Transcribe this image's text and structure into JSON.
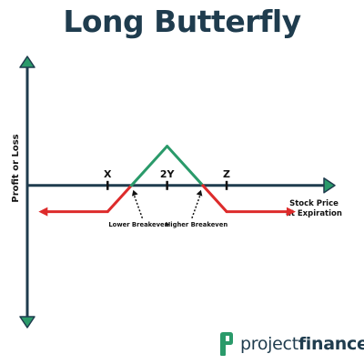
{
  "title": "Long Butterfly",
  "brand": {
    "light": "project",
    "bold": "finance",
    "logo_icon": "projectfinance-logo-icon",
    "logo_color": "#2a9a6a"
  },
  "colors": {
    "axis": "#1f3c4e",
    "arrow_head": "#2a9a6a",
    "profit": "#2a9a6a",
    "loss": "#dd2b2b",
    "text": "#111111"
  },
  "chart_data": {
    "type": "line",
    "xlabel": "Stock Price at Expiration",
    "xlabel_lines": [
      "Stock Price",
      "at Expiration"
    ],
    "ylabel": "Profit or Loss",
    "strikes": [
      {
        "label": "X",
        "x": 0
      },
      {
        "label": "2Y",
        "x": 2
      },
      {
        "label": "Z",
        "x": 4
      }
    ],
    "breakevens": [
      {
        "label": "Lower Breakeven",
        "x": 0.8
      },
      {
        "label": "Higher Breakeven",
        "x": 3.2
      }
    ],
    "payoff": [
      {
        "x": -2.2,
        "y": -1
      },
      {
        "x": 0,
        "y": -1
      },
      {
        "x": 0.8,
        "y": 0
      },
      {
        "x": 2,
        "y": 1.5
      },
      {
        "x": 3.2,
        "y": 0
      },
      {
        "x": 4,
        "y": -1
      },
      {
        "x": 6.2,
        "y": -1
      }
    ],
    "xlim": [
      -2.7,
      7.7
    ],
    "ylim": [
      -5.5,
      5.0
    ],
    "grid": false,
    "legend": "none"
  }
}
